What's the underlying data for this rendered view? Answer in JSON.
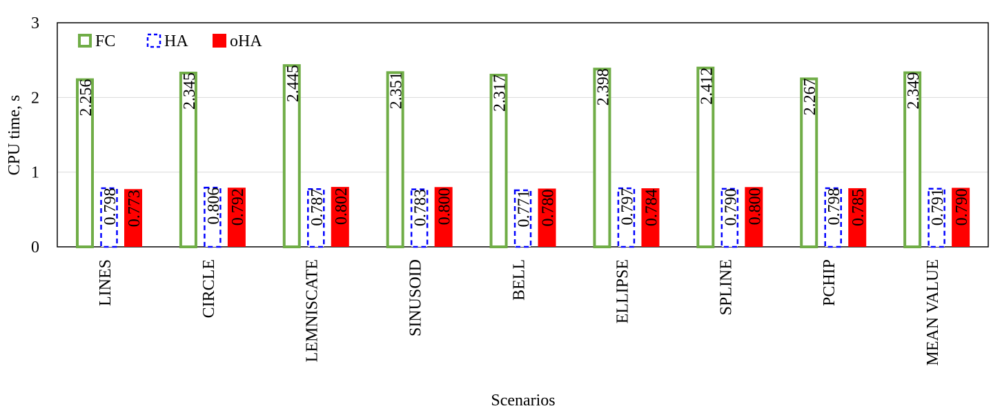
{
  "chart_data": {
    "type": "bar",
    "title": "",
    "xlabel": "Scenarios",
    "ylabel": "CPU time, s",
    "ylim": [
      0,
      3
    ],
    "yticks": [
      "0",
      "1",
      "2",
      "3"
    ],
    "grid": true,
    "legend_position": "top-left",
    "categories": [
      "LINES",
      "CIRCLE",
      "LEMNISCATE",
      "SINUSOID",
      "BELL",
      "ELLIPSE",
      "SPLINE",
      "PCHIP",
      "MEAN VALUE"
    ],
    "series": [
      {
        "name": "FC",
        "style": "outline-solid",
        "color": "#70ad47",
        "values": [
          2.256,
          2.345,
          2.445,
          2.351,
          2.317,
          2.398,
          2.412,
          2.267,
          2.349
        ],
        "labels": [
          "2.256",
          "2.345",
          "2.445",
          "2.351",
          "2.317",
          "2.398",
          "2.412",
          "2.267",
          "2.349"
        ]
      },
      {
        "name": "HA",
        "style": "outline-dashed",
        "color": "#0000ff",
        "values": [
          0.798,
          0.806,
          0.787,
          0.783,
          0.771,
          0.797,
          0.79,
          0.798,
          0.791
        ],
        "labels": [
          "0.798",
          "0.806",
          "0.787",
          "0.783",
          "0.771",
          "0.797",
          "0.790",
          "0.798",
          "0.791"
        ]
      },
      {
        "name": "oHA",
        "style": "filled",
        "color": "#ff0000",
        "values": [
          0.773,
          0.792,
          0.802,
          0.8,
          0.78,
          0.784,
          0.8,
          0.785,
          0.79
        ],
        "labels": [
          "0.773",
          "0.792",
          "0.802",
          "0.800",
          "0.780",
          "0.784",
          "0.800",
          "0.785",
          "0.790"
        ]
      }
    ]
  }
}
